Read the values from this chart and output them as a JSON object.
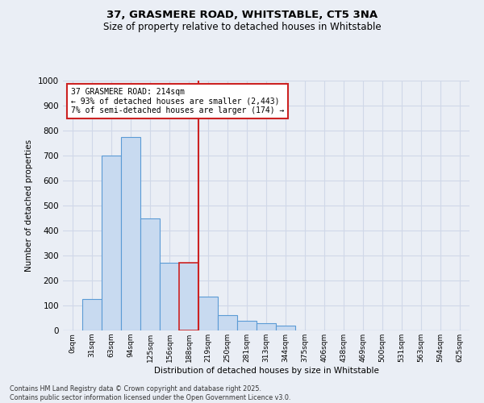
{
  "title_line1": "37, GRASMERE ROAD, WHITSTABLE, CT5 3NA",
  "title_line2": "Size of property relative to detached houses in Whitstable",
  "xlabel": "Distribution of detached houses by size in Whitstable",
  "ylabel": "Number of detached properties",
  "bin_labels": [
    "0sqm",
    "31sqm",
    "63sqm",
    "94sqm",
    "125sqm",
    "156sqm",
    "188sqm",
    "219sqm",
    "250sqm",
    "281sqm",
    "313sqm",
    "344sqm",
    "375sqm",
    "406sqm",
    "438sqm",
    "469sqm",
    "500sqm",
    "531sqm",
    "563sqm",
    "594sqm",
    "625sqm"
  ],
  "bar_values": [
    0,
    125,
    700,
    775,
    450,
    270,
    270,
    135,
    60,
    40,
    30,
    20,
    0,
    0,
    0,
    0,
    0,
    0,
    0,
    0,
    0
  ],
  "bar_color": "#c8daf0",
  "bar_edge_color": "#5b9bd5",
  "highlight_bar_idx": 6,
  "highlight_bar_edge_color": "#cc2222",
  "vline_x_idx": 7,
  "vline_color": "#cc2222",
  "annotation_text": "37 GRASMERE ROAD: 214sqm\n← 93% of detached houses are smaller (2,443)\n7% of semi-detached houses are larger (174) →",
  "annotation_box_color": "#ffffff",
  "annotation_border_color": "#cc2222",
  "ylim": [
    0,
    1000
  ],
  "yticks": [
    0,
    100,
    200,
    300,
    400,
    500,
    600,
    700,
    800,
    900,
    1000
  ],
  "footer_line1": "Contains HM Land Registry data © Crown copyright and database right 2025.",
  "footer_line2": "Contains public sector information licensed under the Open Government Licence v3.0.",
  "bg_color": "#eaeef5",
  "plot_bg_color": "#eaeef5",
  "grid_color": "#d0d8e8",
  "title_fontsize": 9.5,
  "subtitle_fontsize": 8.5
}
